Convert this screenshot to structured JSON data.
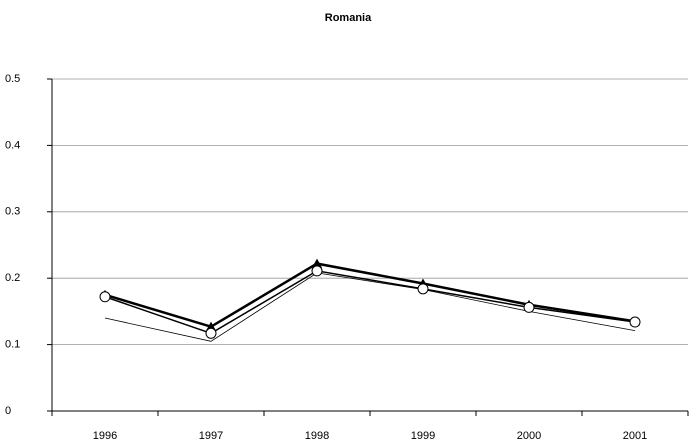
{
  "chart_data": {
    "type": "line",
    "title": "Romania",
    "categories": [
      "1996",
      "1997",
      "1998",
      "1999",
      "2000",
      "2001"
    ],
    "series": [
      {
        "color": "#000000",
        "marker": "triangle",
        "linewidth": 2.5,
        "values": [
          0.175,
          0.127,
          0.222,
          0.192,
          0.16,
          0.135
        ]
      },
      {
        "color": "#000000",
        "marker": "circle",
        "linewidth": 1.5,
        "values": [
          0.172,
          0.117,
          0.211,
          0.184,
          0.156,
          0.134
        ]
      },
      {
        "color": "#000000",
        "marker": "none",
        "linewidth": 0.8,
        "values": [
          0.14,
          0.105,
          0.208,
          0.183,
          0.15,
          0.121
        ]
      }
    ],
    "ylim": [
      0,
      0.5
    ],
    "yticks": [
      0,
      0.1,
      0.2,
      0.3,
      0.4,
      0.5
    ],
    "grid": true
  }
}
